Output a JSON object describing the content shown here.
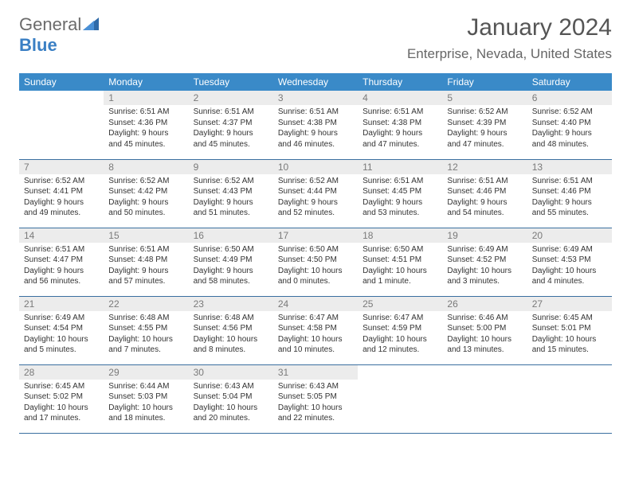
{
  "brand": {
    "part1": "General",
    "part2": "Blue"
  },
  "title": "January 2024",
  "location": "Enterprise, Nevada, United States",
  "colors": {
    "header_bg": "#3a8ac8",
    "header_fg": "#ffffff",
    "daynum_bg": "#ececec",
    "daynum_fg": "#7a7a7a",
    "rule": "#3a6fa0",
    "brand_gray": "#6b6b6b",
    "brand_blue": "#3a7fc4"
  },
  "weekdays": [
    "Sunday",
    "Monday",
    "Tuesday",
    "Wednesday",
    "Thursday",
    "Friday",
    "Saturday"
  ],
  "weeks": [
    [
      {
        "n": "",
        "sr": "",
        "ss": "",
        "dl": ""
      },
      {
        "n": "1",
        "sr": "Sunrise: 6:51 AM",
        "ss": "Sunset: 4:36 PM",
        "dl": "Daylight: 9 hours and 45 minutes."
      },
      {
        "n": "2",
        "sr": "Sunrise: 6:51 AM",
        "ss": "Sunset: 4:37 PM",
        "dl": "Daylight: 9 hours and 45 minutes."
      },
      {
        "n": "3",
        "sr": "Sunrise: 6:51 AM",
        "ss": "Sunset: 4:38 PM",
        "dl": "Daylight: 9 hours and 46 minutes."
      },
      {
        "n": "4",
        "sr": "Sunrise: 6:51 AM",
        "ss": "Sunset: 4:38 PM",
        "dl": "Daylight: 9 hours and 47 minutes."
      },
      {
        "n": "5",
        "sr": "Sunrise: 6:52 AM",
        "ss": "Sunset: 4:39 PM",
        "dl": "Daylight: 9 hours and 47 minutes."
      },
      {
        "n": "6",
        "sr": "Sunrise: 6:52 AM",
        "ss": "Sunset: 4:40 PM",
        "dl": "Daylight: 9 hours and 48 minutes."
      }
    ],
    [
      {
        "n": "7",
        "sr": "Sunrise: 6:52 AM",
        "ss": "Sunset: 4:41 PM",
        "dl": "Daylight: 9 hours and 49 minutes."
      },
      {
        "n": "8",
        "sr": "Sunrise: 6:52 AM",
        "ss": "Sunset: 4:42 PM",
        "dl": "Daylight: 9 hours and 50 minutes."
      },
      {
        "n": "9",
        "sr": "Sunrise: 6:52 AM",
        "ss": "Sunset: 4:43 PM",
        "dl": "Daylight: 9 hours and 51 minutes."
      },
      {
        "n": "10",
        "sr": "Sunrise: 6:52 AM",
        "ss": "Sunset: 4:44 PM",
        "dl": "Daylight: 9 hours and 52 minutes."
      },
      {
        "n": "11",
        "sr": "Sunrise: 6:51 AM",
        "ss": "Sunset: 4:45 PM",
        "dl": "Daylight: 9 hours and 53 minutes."
      },
      {
        "n": "12",
        "sr": "Sunrise: 6:51 AM",
        "ss": "Sunset: 4:46 PM",
        "dl": "Daylight: 9 hours and 54 minutes."
      },
      {
        "n": "13",
        "sr": "Sunrise: 6:51 AM",
        "ss": "Sunset: 4:46 PM",
        "dl": "Daylight: 9 hours and 55 minutes."
      }
    ],
    [
      {
        "n": "14",
        "sr": "Sunrise: 6:51 AM",
        "ss": "Sunset: 4:47 PM",
        "dl": "Daylight: 9 hours and 56 minutes."
      },
      {
        "n": "15",
        "sr": "Sunrise: 6:51 AM",
        "ss": "Sunset: 4:48 PM",
        "dl": "Daylight: 9 hours and 57 minutes."
      },
      {
        "n": "16",
        "sr": "Sunrise: 6:50 AM",
        "ss": "Sunset: 4:49 PM",
        "dl": "Daylight: 9 hours and 58 minutes."
      },
      {
        "n": "17",
        "sr": "Sunrise: 6:50 AM",
        "ss": "Sunset: 4:50 PM",
        "dl": "Daylight: 10 hours and 0 minutes."
      },
      {
        "n": "18",
        "sr": "Sunrise: 6:50 AM",
        "ss": "Sunset: 4:51 PM",
        "dl": "Daylight: 10 hours and 1 minute."
      },
      {
        "n": "19",
        "sr": "Sunrise: 6:49 AM",
        "ss": "Sunset: 4:52 PM",
        "dl": "Daylight: 10 hours and 3 minutes."
      },
      {
        "n": "20",
        "sr": "Sunrise: 6:49 AM",
        "ss": "Sunset: 4:53 PM",
        "dl": "Daylight: 10 hours and 4 minutes."
      }
    ],
    [
      {
        "n": "21",
        "sr": "Sunrise: 6:49 AM",
        "ss": "Sunset: 4:54 PM",
        "dl": "Daylight: 10 hours and 5 minutes."
      },
      {
        "n": "22",
        "sr": "Sunrise: 6:48 AM",
        "ss": "Sunset: 4:55 PM",
        "dl": "Daylight: 10 hours and 7 minutes."
      },
      {
        "n": "23",
        "sr": "Sunrise: 6:48 AM",
        "ss": "Sunset: 4:56 PM",
        "dl": "Daylight: 10 hours and 8 minutes."
      },
      {
        "n": "24",
        "sr": "Sunrise: 6:47 AM",
        "ss": "Sunset: 4:58 PM",
        "dl": "Daylight: 10 hours and 10 minutes."
      },
      {
        "n": "25",
        "sr": "Sunrise: 6:47 AM",
        "ss": "Sunset: 4:59 PM",
        "dl": "Daylight: 10 hours and 12 minutes."
      },
      {
        "n": "26",
        "sr": "Sunrise: 6:46 AM",
        "ss": "Sunset: 5:00 PM",
        "dl": "Daylight: 10 hours and 13 minutes."
      },
      {
        "n": "27",
        "sr": "Sunrise: 6:45 AM",
        "ss": "Sunset: 5:01 PM",
        "dl": "Daylight: 10 hours and 15 minutes."
      }
    ],
    [
      {
        "n": "28",
        "sr": "Sunrise: 6:45 AM",
        "ss": "Sunset: 5:02 PM",
        "dl": "Daylight: 10 hours and 17 minutes."
      },
      {
        "n": "29",
        "sr": "Sunrise: 6:44 AM",
        "ss": "Sunset: 5:03 PM",
        "dl": "Daylight: 10 hours and 18 minutes."
      },
      {
        "n": "30",
        "sr": "Sunrise: 6:43 AM",
        "ss": "Sunset: 5:04 PM",
        "dl": "Daylight: 10 hours and 20 minutes."
      },
      {
        "n": "31",
        "sr": "Sunrise: 6:43 AM",
        "ss": "Sunset: 5:05 PM",
        "dl": "Daylight: 10 hours and 22 minutes."
      },
      {
        "n": "",
        "sr": "",
        "ss": "",
        "dl": ""
      },
      {
        "n": "",
        "sr": "",
        "ss": "",
        "dl": ""
      },
      {
        "n": "",
        "sr": "",
        "ss": "",
        "dl": ""
      }
    ]
  ]
}
